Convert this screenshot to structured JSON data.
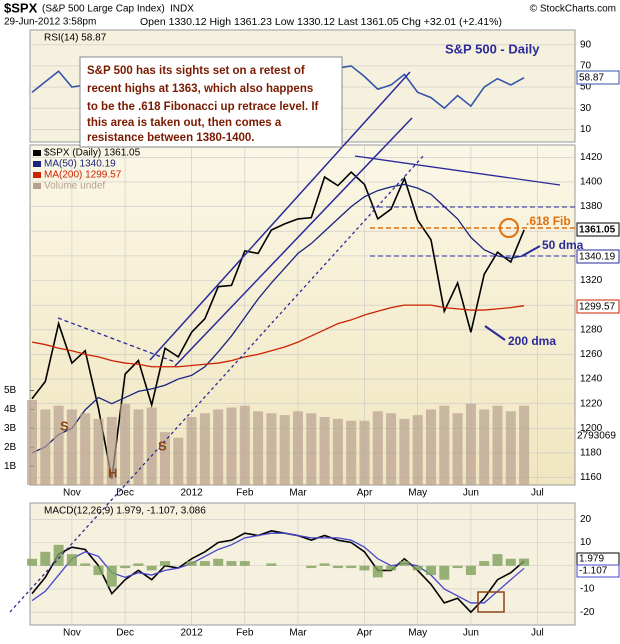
{
  "header": {
    "symbol": "$SPX",
    "name": "(S&P 500 Large Cap Index)",
    "exchange": "INDX",
    "copyright": "© StockCharts.com",
    "date": "29-Jun-2012 3:58pm",
    "quote": "Open 1330.12  High 1361.23  Low 1330.12  Last 1361.05  Chg +32.01 (+2.41%)"
  },
  "annotations": {
    "panel_title": "S&P 500 - Daily",
    "note": [
      "S&P 500 has its sights set on a retest of",
      "recent highs at 1363, which also happens",
      "to be the .618 Fibonacci up retrace level. If",
      "this area is taken out, then comes a",
      "resistance between 1380-1400."
    ],
    "fib": ".618 Fib",
    "dma50": "50 dma",
    "dma200": "200 dma",
    "s1": "S",
    "h": "H",
    "s2": "S",
    "last_price": "1361.05",
    "last_ma50": "1340.19",
    "last_ma200": "1299.57",
    "last_volume": "2793069",
    "last_rsi": "58.87",
    "last_macd": "1.979",
    "last_signal": "-1.107"
  },
  "chart_data": [
    {
      "type": "line",
      "title": "RSI(14) 58.87",
      "ylim": [
        -2,
        104
      ],
      "yticks": [
        10,
        30,
        50,
        70,
        90
      ],
      "grid": true,
      "series": [
        {
          "name": "RSI(14)",
          "color": "#3355aa",
          "values": [
            45,
            55,
            65,
            50,
            52,
            40,
            32,
            55,
            58,
            45,
            60,
            58,
            65,
            68,
            72,
            70,
            74,
            70,
            72,
            70,
            68,
            66,
            75,
            68,
            70,
            60,
            48,
            52,
            62,
            45,
            40,
            30,
            42,
            32,
            50,
            58,
            52,
            58.87,
            null
          ]
        }
      ]
    },
    {
      "type": "line",
      "categories": [
        null,
        null,
        null,
        "Nov",
        null,
        null,
        null,
        "Dec",
        null,
        null,
        null,
        null,
        "2012",
        null,
        null,
        null,
        "Feb",
        null,
        null,
        null,
        "Mar",
        null,
        null,
        null,
        null,
        "Apr",
        null,
        null,
        null,
        "May",
        null,
        null,
        null,
        "Jun",
        null,
        null,
        null,
        null,
        "Jul"
      ],
      "ylim": [
        1154,
        1430
      ],
      "yticks": [
        1160,
        1180,
        1200,
        1220,
        1240,
        1260,
        1280,
        1300,
        1320,
        1340,
        1360,
        1380,
        1400,
        1420
      ],
      "grid": true,
      "y2lim": [
        0,
        18
      ],
      "y2ticks": [
        {
          "value": 1,
          "label": "1B"
        },
        {
          "value": 2,
          "label": "2B"
        },
        {
          "value": 3,
          "label": "3B"
        },
        {
          "value": 4,
          "label": "4B"
        },
        {
          "value": 5,
          "label": "5B"
        }
      ],
      "series": [
        {
          "name": "$SPX (Daily) 1361.05",
          "color": "#000000",
          "values": [
            1224,
            1238,
            1285,
            1253,
            1263,
            1216,
            1159,
            1244,
            1255,
            1219,
            1265,
            1258,
            1278,
            1289,
            1315,
            1316,
            1344,
            1342,
            1361,
            1366,
            1370,
            1371,
            1404,
            1397,
            1408,
            1398,
            1370,
            1378,
            1403,
            1369,
            1353,
            1295,
            1318,
            1278,
            1325,
            1343,
            1335,
            1361.05,
            null
          ]
        },
        {
          "name": "MA(50) 1340.19",
          "color": "#1a237e",
          "values": [
            1180,
            1185,
            1195,
            1200,
            1215,
            1225,
            1220,
            1225,
            1230,
            1232,
            1235,
            1240,
            1243,
            1250,
            1262,
            1275,
            1290,
            1305,
            1318,
            1330,
            1342,
            1350,
            1360,
            1370,
            1380,
            1388,
            1393,
            1396,
            1398,
            1395,
            1390,
            1380,
            1370,
            1355,
            1345,
            1340,
            1338,
            1340.19,
            null
          ]
        },
        {
          "name": "MA(200) 1299.57",
          "color": "#cc2200",
          "values": [
            1270,
            1268,
            1265,
            1263,
            1260,
            1258,
            1255,
            1253,
            1252,
            1250,
            1250,
            1250,
            1251,
            1252,
            1253,
            1255,
            1258,
            1260,
            1263,
            1266,
            1270,
            1275,
            1280,
            1285,
            1288,
            1292,
            1295,
            1298,
            1300,
            1300,
            1300,
            1298,
            1297,
            1296,
            1296,
            1297,
            1298,
            1299.57,
            null
          ]
        },
        {
          "name": "Volume undef",
          "color": "#b8a090",
          "axis": "y2",
          "values": [
            4.5,
            4,
            4.2,
            4,
            3.8,
            3.5,
            3.6,
            4.3,
            4,
            4.1,
            2.8,
            2.5,
            3.6,
            3.8,
            4,
            4.1,
            4.2,
            3.9,
            3.8,
            3.7,
            3.9,
            3.8,
            3.6,
            3.5,
            3.4,
            3.4,
            3.9,
            3.8,
            3.5,
            3.7,
            4,
            4.2,
            3.8,
            4.3,
            4,
            4.2,
            3.9,
            4.2,
            null
          ]
        }
      ]
    },
    {
      "type": "line",
      "title": "MACD(12,26,9) 1.979, -1.107, 3.086",
      "categories": [
        null,
        null,
        null,
        "Nov",
        null,
        null,
        null,
        "Dec",
        null,
        null,
        null,
        null,
        "2012",
        null,
        null,
        null,
        "Feb",
        null,
        null,
        null,
        "Mar",
        null,
        null,
        null,
        null,
        "Apr",
        null,
        null,
        null,
        "May",
        null,
        null,
        null,
        "Jun",
        null,
        null,
        null,
        null,
        "Jul"
      ],
      "ylim": [
        -25.5,
        27
      ],
      "yticks": [
        -20,
        -10,
        0,
        10,
        20
      ],
      "grid": true,
      "series": [
        {
          "name": "MACD",
          "color": "#000000",
          "values": [
            -12,
            -5,
            5,
            8,
            7,
            0,
            -12,
            -6,
            -2,
            -6,
            0,
            -1,
            3,
            6,
            10,
            11,
            14,
            13,
            15,
            14,
            13,
            11,
            13,
            11,
            10,
            6,
            -2,
            -2,
            3,
            -2,
            -8,
            -16,
            -14,
            -20,
            -14,
            -6,
            -3,
            1.979,
            null
          ]
        },
        {
          "name": "Signal",
          "color": "#4444cc",
          "values": [
            -15,
            -11,
            -4,
            3,
            6,
            4,
            -3,
            -5,
            -3,
            -4,
            -2,
            -1,
            1,
            4,
            7,
            9,
            12,
            13,
            14,
            14,
            13,
            12,
            12,
            12,
            11,
            8,
            3,
            0,
            1,
            0,
            -4,
            -10,
            -13,
            -16,
            -16,
            -11,
            -6,
            -1.107,
            null
          ]
        },
        {
          "name": "Histogram",
          "color": "#7fa05a",
          "axis": "hist",
          "values": [
            3,
            6,
            9,
            5,
            1,
            -4,
            -9,
            -1,
            1,
            -2,
            2,
            0,
            2,
            2,
            3,
            2,
            2,
            0,
            1,
            0,
            0,
            -1,
            1,
            -1,
            -1,
            -2,
            -5,
            -2,
            2,
            -2,
            -4,
            -6,
            -1,
            -4,
            2,
            5,
            3,
            3.086,
            null
          ]
        }
      ]
    }
  ]
}
